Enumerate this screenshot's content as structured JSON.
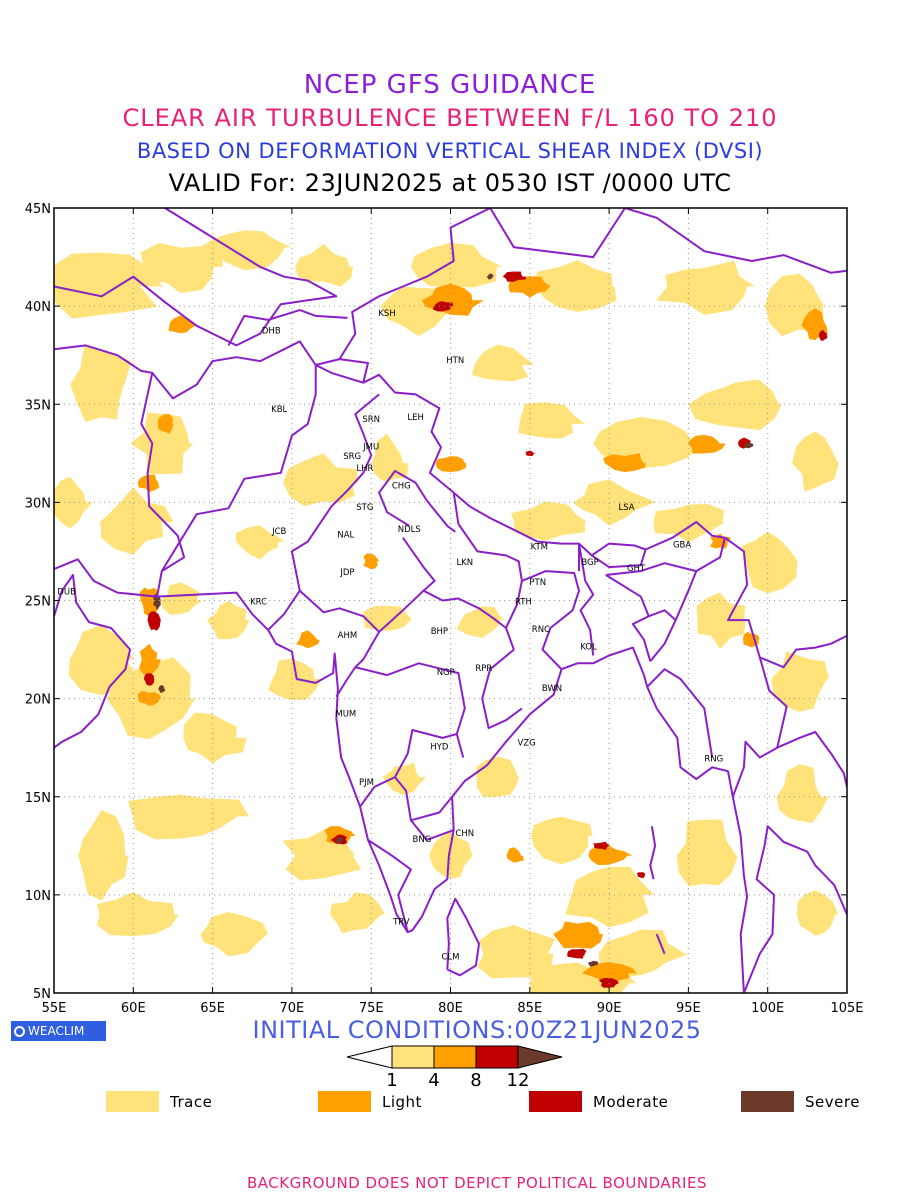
{
  "header": {
    "line1": "NCEP GFS GUIDANCE",
    "line2": "CLEAR AIR TURBULENCE BETWEEN F/L 160 TO 210",
    "line3": "BASED ON DEFORMATION VERTICAL SHEAR INDEX (DVSI)",
    "line4": "VALID For: 23JUN2025 at 0530 IST /0000 UTC"
  },
  "map": {
    "extent": {
      "lon_min": 55,
      "lon_max": 105,
      "lat_min": 5,
      "lat_max": 45
    },
    "lon_labels": [
      "55E",
      "60E",
      "65E",
      "70E",
      "75E",
      "80E",
      "85E",
      "90E",
      "95E",
      "100E",
      "105E"
    ],
    "lat_labels": [
      "45N",
      "40N",
      "35N",
      "30N",
      "25N",
      "20N",
      "15N",
      "10N",
      "5N"
    ],
    "stations": [
      {
        "code": "KSH",
        "lon": 76.0,
        "lat": 39.5
      },
      {
        "code": "DHB",
        "lon": 68.7,
        "lat": 38.6
      },
      {
        "code": "HTN",
        "lon": 80.3,
        "lat": 37.1
      },
      {
        "code": "KBL",
        "lon": 69.2,
        "lat": 34.6
      },
      {
        "code": "SRN",
        "lon": 75.0,
        "lat": 34.1
      },
      {
        "code": "LEH",
        "lon": 77.8,
        "lat": 34.2
      },
      {
        "code": "JMU",
        "lon": 75.0,
        "lat": 32.7
      },
      {
        "code": "SRG",
        "lon": 73.8,
        "lat": 32.2
      },
      {
        "code": "LHR",
        "lon": 74.6,
        "lat": 31.6
      },
      {
        "code": "CHG",
        "lon": 76.9,
        "lat": 30.7
      },
      {
        "code": "STG",
        "lon": 74.6,
        "lat": 29.6
      },
      {
        "code": "JCB",
        "lon": 69.2,
        "lat": 28.4
      },
      {
        "code": "NAL",
        "lon": 73.4,
        "lat": 28.2
      },
      {
        "code": "NDLS",
        "lon": 77.4,
        "lat": 28.5
      },
      {
        "code": "LSA",
        "lon": 91.1,
        "lat": 29.6
      },
      {
        "code": "KTM",
        "lon": 85.6,
        "lat": 27.6
      },
      {
        "code": "GBA",
        "lon": 94.6,
        "lat": 27.7
      },
      {
        "code": "BGP",
        "lon": 88.8,
        "lat": 26.8
      },
      {
        "code": "GHT",
        "lon": 91.7,
        "lat": 26.5
      },
      {
        "code": "JDP",
        "lon": 73.5,
        "lat": 26.3
      },
      {
        "code": "LKN",
        "lon": 80.9,
        "lat": 26.8
      },
      {
        "code": "PTN",
        "lon": 85.5,
        "lat": 25.8
      },
      {
        "code": "DUB",
        "lon": 55.8,
        "lat": 25.3
      },
      {
        "code": "RTH",
        "lon": 84.6,
        "lat": 24.8
      },
      {
        "code": "KRC",
        "lon": 67.9,
        "lat": 24.8
      },
      {
        "code": "BHP",
        "lon": 79.3,
        "lat": 23.3
      },
      {
        "code": "AHM",
        "lon": 73.5,
        "lat": 23.1
      },
      {
        "code": "RNC",
        "lon": 85.7,
        "lat": 23.4
      },
      {
        "code": "KOL",
        "lon": 88.7,
        "lat": 22.5
      },
      {
        "code": "RPR",
        "lon": 82.1,
        "lat": 21.4
      },
      {
        "code": "NGP",
        "lon": 79.7,
        "lat": 21.2
      },
      {
        "code": "BWN",
        "lon": 86.4,
        "lat": 20.4
      },
      {
        "code": "MUM",
        "lon": 73.4,
        "lat": 19.1
      },
      {
        "code": "HYD",
        "lon": 79.3,
        "lat": 17.4
      },
      {
        "code": "VZG",
        "lon": 84.8,
        "lat": 17.6
      },
      {
        "code": "RNG",
        "lon": 96.6,
        "lat": 16.8
      },
      {
        "code": "PJM",
        "lon": 74.7,
        "lat": 15.6
      },
      {
        "code": "CHN",
        "lon": 80.9,
        "lat": 13.0
      },
      {
        "code": "BNG",
        "lon": 78.2,
        "lat": 12.7
      },
      {
        "code": "TRV",
        "lon": 76.9,
        "lat": 8.5
      },
      {
        "code": "CLM",
        "lon": 80.0,
        "lat": 6.7
      }
    ]
  },
  "footer_info": {
    "logo_text": "WEACLIM",
    "initial_conditions": "INITIAL CONDITIONS:00Z21JUN2025",
    "background_note": "BACKGROUND DOES NOT DEPICT POLITICAL BOUNDARIES"
  },
  "colorbar": {
    "ticks": [
      "1",
      "4",
      "8",
      "12"
    ],
    "colors": [
      "#ffffff",
      "#ffe27a",
      "#ffa000",
      "#c00000",
      "#6b3a2a"
    ]
  },
  "legend": [
    {
      "label": "Trace",
      "color": "#ffe27a"
    },
    {
      "label": "Light",
      "color": "#ffa000"
    },
    {
      "label": "Moderate",
      "color": "#c00000"
    },
    {
      "label": "Severe",
      "color": "#6b3a2a"
    }
  ],
  "colors": {
    "trace": "#ffe27a",
    "light": "#ffa000",
    "moderate": "#c00000",
    "severe": "#6b3a2a",
    "boundary": "#8a1fc8",
    "grid": "#999999"
  }
}
